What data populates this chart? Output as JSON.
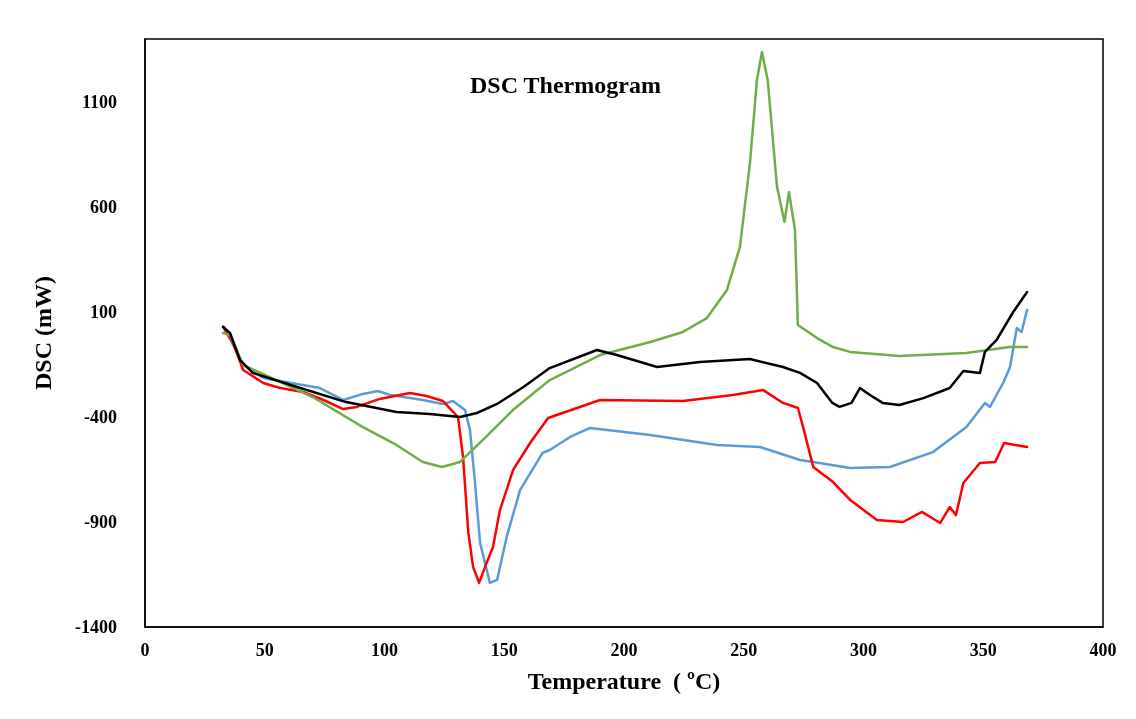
{
  "chart_data": {
    "type": "line",
    "title": "DSC Thermogram",
    "xlabel": "Temperature  ( ºC)",
    "ylabel": "DSC (mW)",
    "xlim": [
      0,
      400
    ],
    "xticks": [
      0,
      50,
      100,
      150,
      200,
      250,
      300,
      350,
      400
    ],
    "ylim": [
      -1400,
      1400
    ],
    "yticks": [
      -1400,
      -900,
      -400,
      100,
      600,
      1100
    ],
    "grid": false,
    "marker": "none",
    "line_style": "solid",
    "series": [
      {
        "color": "#5b9bd5",
        "x": [
          33,
          41,
          49.4,
          63.5,
          73,
          82.8,
          91,
          97.3,
          102.3,
          116,
          124.4,
          128.6,
          133.6,
          135.7,
          137.8,
          139.9,
          144,
          147,
          151,
          156.6,
          166,
          169,
          177.5,
          185.8,
          210.9,
          238.8,
          256.8,
          273.5,
          279,
          294.4,
          311,
          329,
          343,
          350.7,
          352.8,
          358.3,
          361.2,
          364,
          366,
          368.3
        ],
        "values": [
          29,
          -152,
          -214,
          -243,
          -262,
          -319,
          -290,
          -276,
          -295,
          -319,
          -338,
          -324,
          -367,
          -462,
          -714,
          -1000,
          -1190,
          -1176,
          -971,
          -748,
          -571,
          -557,
          -495,
          -452,
          -486,
          -533,
          -543,
          -605,
          -614,
          -643,
          -638,
          -567,
          -448,
          -333,
          -352,
          -238,
          -162,
          24,
          5,
          110
        ]
      },
      {
        "color": "#ff0000",
        "x": [
          32.6,
          36.8,
          41,
          49.4,
          56.4,
          66,
          74.5,
          82.8,
          88.4,
          98,
          110.6,
          117.6,
          124.4,
          130.7,
          132.8,
          135,
          137,
          139.5,
          142.8,
          145.3,
          148.2,
          153.7,
          160.8,
          168.3,
          190,
          224.6,
          245.5,
          258,
          266.4,
          272.6,
          274.8,
          279,
          287.3,
          294.4,
          305.6,
          316.5,
          324.4,
          332,
          336,
          338.6,
          341.7,
          348.6,
          355,
          358.7,
          368.3
        ],
        "values": [
          29,
          -48,
          -176,
          -238,
          -262,
          -281,
          -319,
          -362,
          -352,
          -314,
          -286,
          -300,
          -324,
          -400,
          -590,
          -952,
          -1114,
          -1190,
          -1090,
          -1019,
          -843,
          -652,
          -524,
          -405,
          -319,
          -324,
          -295,
          -271,
          -333,
          -357,
          -448,
          -638,
          -710,
          -795,
          -890,
          -900,
          -852,
          -905,
          -829,
          -867,
          -714,
          -619,
          -614,
          -524,
          -543
        ]
      },
      {
        "color": "#70ad47",
        "x": [
          32.6,
          35.5,
          41,
          56.4,
          70,
          91,
          105,
          116,
          124,
          131.5,
          141,
          153.6,
          169,
          190,
          211,
          224.6,
          234.6,
          243,
          248.4,
          252.6,
          255.5,
          257.6,
          260,
          263.9,
          267,
          268.9,
          271.4,
          272.6,
          280.6,
          287.3,
          294.4,
          315,
          343,
          361,
          368.3
        ],
        "values": [
          0,
          -10,
          -152,
          -233,
          -305,
          -448,
          -533,
          -614,
          -638,
          -614,
          -510,
          -367,
          -224,
          -105,
          -43,
          5,
          71,
          205,
          410,
          810,
          1205,
          1338,
          1205,
          695,
          529,
          671,
          490,
          38,
          -24,
          -67,
          -90,
          -110,
          -95,
          -67,
          -67
        ]
      },
      {
        "color": "#000000",
        "x": [
          32.6,
          35.5,
          39.7,
          45,
          63.5,
          84,
          105,
          119,
          131.5,
          138.6,
          147,
          158,
          169,
          188.7,
          197,
          213.8,
          231.7,
          252.6,
          266.4,
          273.5,
          280.6,
          287,
          290,
          295,
          298.5,
          302.7,
          308,
          315,
          325,
          336,
          341.7,
          348.6,
          350.7,
          355.6,
          362.5,
          368.3
        ],
        "values": [
          29,
          0,
          -129,
          -190,
          -257,
          -329,
          -376,
          -386,
          -400,
          -381,
          -338,
          -257,
          -167,
          -81,
          -105,
          -162,
          -138,
          -124,
          -162,
          -190,
          -238,
          -333,
          -352,
          -333,
          -262,
          -295,
          -333,
          -343,
          -310,
          -262,
          -181,
          -190,
          -90,
          -33,
          100,
          195
        ]
      }
    ]
  }
}
